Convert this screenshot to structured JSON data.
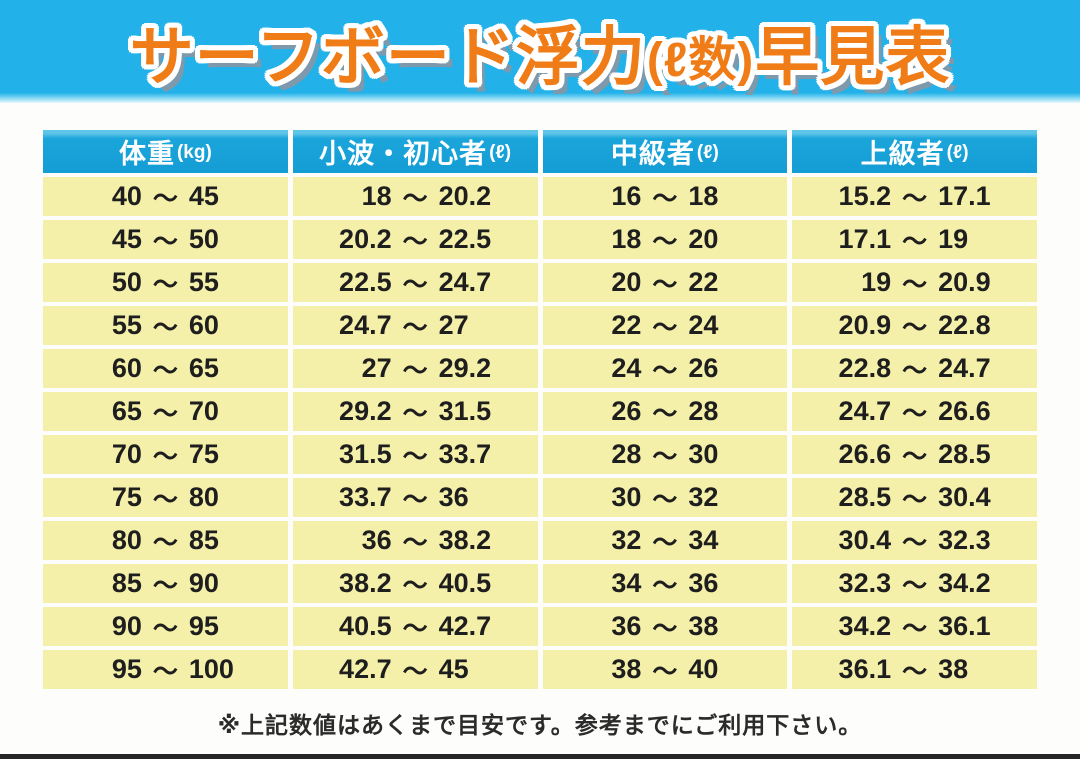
{
  "title": {
    "part1": "サーフボード浮力",
    "part2": "(ℓ数)",
    "part3": "早見表"
  },
  "table": {
    "tilde": "〜",
    "headers": [
      {
        "label": "体重",
        "unit": "(kg)"
      },
      {
        "label": "小波・初心者",
        "unit": "(ℓ)"
      },
      {
        "label": "中級者",
        "unit": "(ℓ)"
      },
      {
        "label": "上級者",
        "unit": "(ℓ)"
      }
    ],
    "rows": [
      {
        "weight": [
          "40",
          "45"
        ],
        "beginner": [
          "18",
          "20.2"
        ],
        "intermediate": [
          "16",
          "18"
        ],
        "advanced": [
          "15.2",
          "17.1"
        ]
      },
      {
        "weight": [
          "45",
          "50"
        ],
        "beginner": [
          "20.2",
          "22.5"
        ],
        "intermediate": [
          "18",
          "20"
        ],
        "advanced": [
          "17.1",
          "19"
        ]
      },
      {
        "weight": [
          "50",
          "55"
        ],
        "beginner": [
          "22.5",
          "24.7"
        ],
        "intermediate": [
          "20",
          "22"
        ],
        "advanced": [
          "19",
          "20.9"
        ]
      },
      {
        "weight": [
          "55",
          "60"
        ],
        "beginner": [
          "24.7",
          "27"
        ],
        "intermediate": [
          "22",
          "24"
        ],
        "advanced": [
          "20.9",
          "22.8"
        ]
      },
      {
        "weight": [
          "60",
          "65"
        ],
        "beginner": [
          "27",
          "29.2"
        ],
        "intermediate": [
          "24",
          "26"
        ],
        "advanced": [
          "22.8",
          "24.7"
        ]
      },
      {
        "weight": [
          "65",
          "70"
        ],
        "beginner": [
          "29.2",
          "31.5"
        ],
        "intermediate": [
          "26",
          "28"
        ],
        "advanced": [
          "24.7",
          "26.6"
        ]
      },
      {
        "weight": [
          "70",
          "75"
        ],
        "beginner": [
          "31.5",
          "33.7"
        ],
        "intermediate": [
          "28",
          "30"
        ],
        "advanced": [
          "26.6",
          "28.5"
        ]
      },
      {
        "weight": [
          "75",
          "80"
        ],
        "beginner": [
          "33.7",
          "36"
        ],
        "intermediate": [
          "30",
          "32"
        ],
        "advanced": [
          "28.5",
          "30.4"
        ]
      },
      {
        "weight": [
          "80",
          "85"
        ],
        "beginner": [
          "36",
          "38.2"
        ],
        "intermediate": [
          "32",
          "34"
        ],
        "advanced": [
          "30.4",
          "32.3"
        ]
      },
      {
        "weight": [
          "85",
          "90"
        ],
        "beginner": [
          "38.2",
          "40.5"
        ],
        "intermediate": [
          "34",
          "36"
        ],
        "advanced": [
          "32.3",
          "34.2"
        ]
      },
      {
        "weight": [
          "90",
          "95"
        ],
        "beginner": [
          "40.5",
          "42.7"
        ],
        "intermediate": [
          "36",
          "38"
        ],
        "advanced": [
          "34.2",
          "36.1"
        ]
      },
      {
        "weight": [
          "95",
          "100"
        ],
        "beginner": [
          "42.7",
          "45"
        ],
        "intermediate": [
          "38",
          "40"
        ],
        "advanced": [
          "36.1",
          "38"
        ]
      }
    ]
  },
  "footer": {
    "note": "※上記数値はあくまで目安です。参考までにご利用下さい。"
  },
  "colors": {
    "title_band_blue": "#22b1e8",
    "title_orange": "#ef7c16",
    "title_outline": "#ffffff",
    "title_shadow": "#7e99ab",
    "header_blue": "#149dd4",
    "header_text": "#ffffff",
    "cell_yellow": "#f4efa9",
    "cell_text": "#1e1e1e",
    "note_text": "#2b2b2b",
    "bottom_bar": "#262626"
  }
}
